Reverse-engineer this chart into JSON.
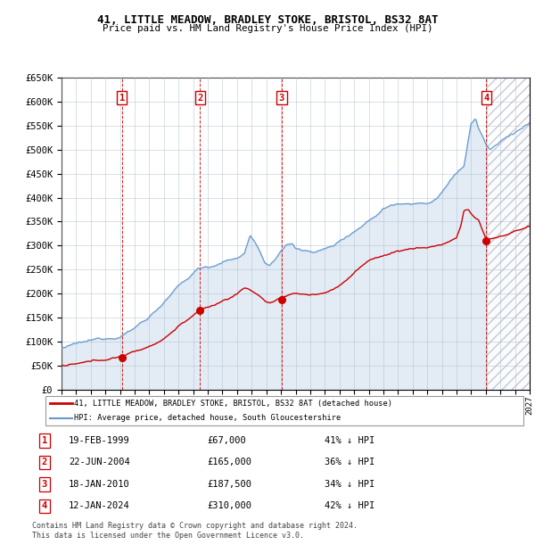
{
  "title1": "41, LITTLE MEADOW, BRADLEY STOKE, BRISTOL, BS32 8AT",
  "title2": "Price paid vs. HM Land Registry's House Price Index (HPI)",
  "ylim": [
    0,
    650000
  ],
  "yticks": [
    0,
    50000,
    100000,
    150000,
    200000,
    250000,
    300000,
    350000,
    400000,
    450000,
    500000,
    550000,
    600000,
    650000
  ],
  "ytick_labels": [
    "£0",
    "£50K",
    "£100K",
    "£150K",
    "£200K",
    "£250K",
    "£300K",
    "£350K",
    "£400K",
    "£450K",
    "£500K",
    "£550K",
    "£600K",
    "£650K"
  ],
  "xlim_start": 1995.0,
  "xlim_end": 2027.0,
  "transactions": [
    {
      "num": 1,
      "date": "19-FEB-1999",
      "year": 1999.13,
      "price": 67000,
      "pct": "41%",
      "direction": "↓"
    },
    {
      "num": 2,
      "date": "22-JUN-2004",
      "year": 2004.47,
      "price": 165000,
      "pct": "36%",
      "direction": "↓"
    },
    {
      "num": 3,
      "date": "18-JAN-2010",
      "year": 2010.05,
      "price": 187500,
      "pct": "34%",
      "direction": "↓"
    },
    {
      "num": 4,
      "date": "12-JAN-2024",
      "year": 2024.04,
      "price": 310000,
      "pct": "42%",
      "direction": "↓"
    }
  ],
  "legend_label_red": "41, LITTLE MEADOW, BRADLEY STOKE, BRISTOL, BS32 8AT (detached house)",
  "legend_label_blue": "HPI: Average price, detached house, South Gloucestershire",
  "footer": "Contains HM Land Registry data © Crown copyright and database right 2024.\nThis data is licensed under the Open Government Licence v3.0.",
  "red_color": "#cc0000",
  "blue_color": "#6699cc",
  "grid_color": "#aabbcc"
}
